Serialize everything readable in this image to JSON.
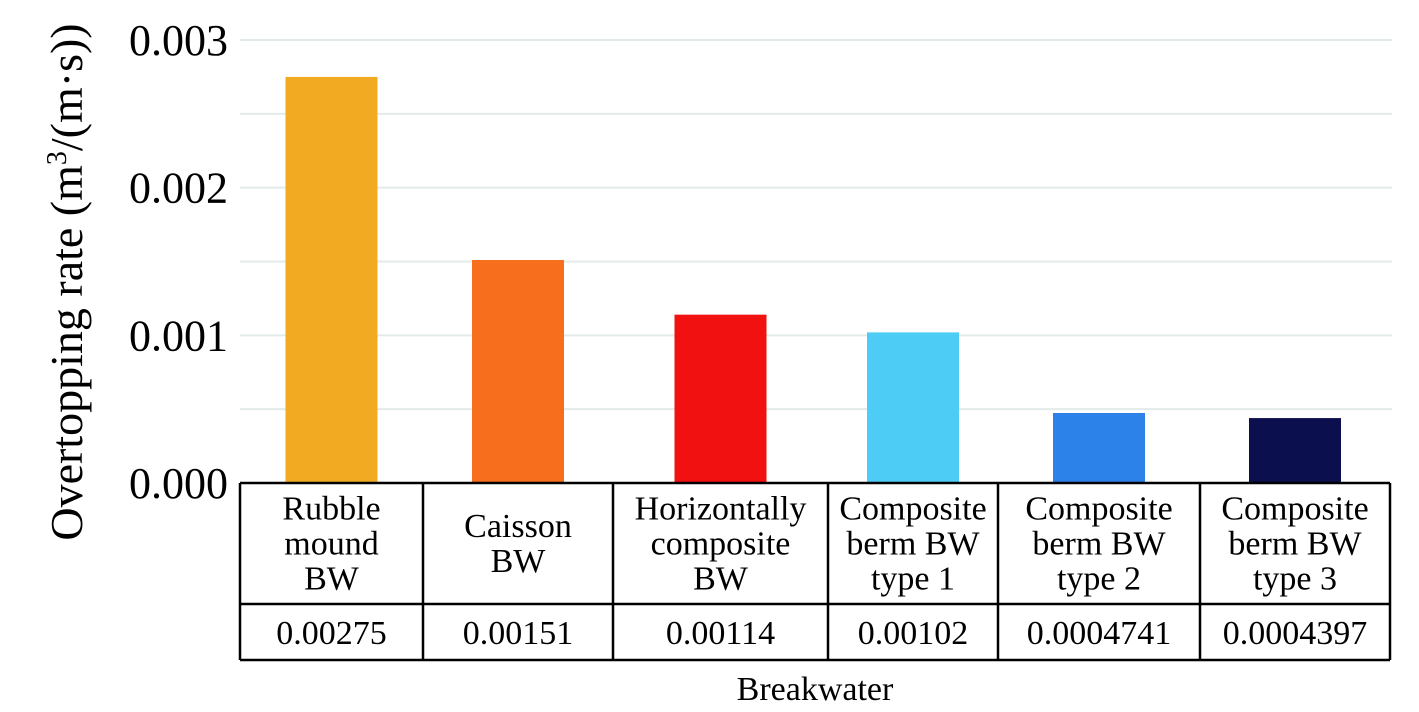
{
  "chart_data": {
    "type": "bar",
    "ylabel_prefix": "Overtopping rate (m",
    "ylabel_sup": "3",
    "ylabel_suffix": "/(m·s))",
    "xlabel": "Breakwater",
    "ylim": [
      0,
      0.003
    ],
    "yticks": [
      "0.000",
      "0.001",
      "0.002",
      "0.003"
    ],
    "grid": true,
    "categories": [
      [
        "Rubble",
        "mound",
        "BW"
      ],
      [
        "Caisson",
        "BW"
      ],
      [
        "Horizontally",
        "composite",
        "BW"
      ],
      [
        "Composite",
        "berm BW",
        "type 1"
      ],
      [
        "Composite",
        "berm BW",
        "type 2"
      ],
      [
        "Composite",
        "berm BW",
        "type 3"
      ]
    ],
    "values": [
      0.00275,
      0.00151,
      0.00114,
      0.00102,
      0.0004741,
      0.0004397
    ],
    "value_labels": [
      "0.00275",
      "0.00151",
      "0.00114",
      "0.00102",
      "0.0004741",
      "0.0004397"
    ],
    "colors": [
      "#F2AA22",
      "#F76E1C",
      "#F11111",
      "#4DCDF6",
      "#2D82EA",
      "#0B0F4E"
    ]
  }
}
